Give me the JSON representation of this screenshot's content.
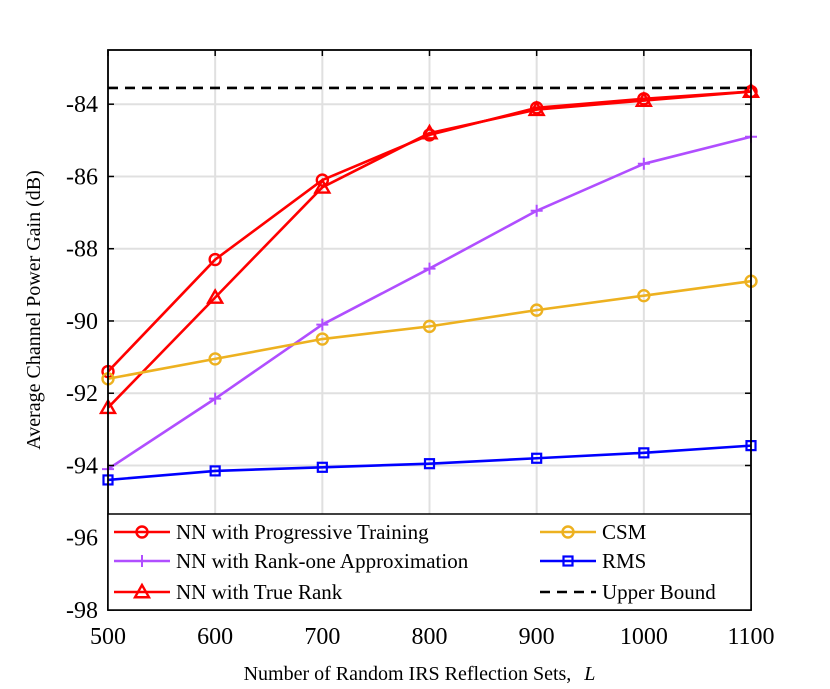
{
  "chart_data": {
    "type": "line",
    "title": "",
    "xlabel": "Number of Random IRS Reflection Sets,",
    "xlabel_var": "L",
    "ylabel": "Average Channel Power Gain (dB)",
    "xlim": [
      500,
      1100
    ],
    "ylim": [
      -98,
      -82.5
    ],
    "x_ticks": [
      500,
      600,
      700,
      800,
      900,
      1000,
      1100
    ],
    "x_tick_labels": [
      "500",
      "600",
      "700",
      "800",
      "900",
      "1000",
      "1100"
    ],
    "y_ticks": [
      -98,
      -96,
      -94,
      -92,
      -90,
      -88,
      -86,
      -84
    ],
    "y_tick_labels": [
      "-98",
      "-96",
      "-94",
      "-92",
      "-90",
      "-88",
      "-86",
      "-84"
    ],
    "grid": true,
    "legend_position": "bottom",
    "series": [
      {
        "key": "progressive",
        "name": "NN with Progressive Training",
        "color": "#ff0000",
        "marker": "circle",
        "dash": "solid",
        "x": [
          500,
          600,
          700,
          800,
          900,
          1000,
          1100
        ],
        "values": [
          -91.4,
          -88.3,
          -86.1,
          -84.85,
          -84.1,
          -83.85,
          -83.65
        ]
      },
      {
        "key": "rankone",
        "name": "NN with Rank-one Approximation",
        "color": "#b04eff",
        "marker": "plus",
        "dash": "solid",
        "x": [
          500,
          600,
          700,
          800,
          900,
          1000,
          1100
        ],
        "values": [
          -94.1,
          -92.15,
          -90.1,
          -88.55,
          -86.95,
          -85.65,
          -84.9
        ]
      },
      {
        "key": "truerank",
        "name": "NN with True Rank",
        "color": "#ff0000",
        "marker": "triangle",
        "dash": "solid",
        "x": [
          500,
          600,
          700,
          800,
          900,
          1000,
          1100
        ],
        "values": [
          -92.4,
          -89.35,
          -86.3,
          -84.8,
          -84.15,
          -83.9,
          -83.65
        ]
      },
      {
        "key": "csm",
        "name": "CSM",
        "color": "#edb120",
        "marker": "circle",
        "dash": "solid",
        "x": [
          500,
          600,
          700,
          800,
          900,
          1000,
          1100
        ],
        "values": [
          -91.6,
          -91.05,
          -90.5,
          -90.15,
          -89.7,
          -89.3,
          -88.9
        ]
      },
      {
        "key": "rms",
        "name": "RMS",
        "color": "#0000ff",
        "marker": "square",
        "dash": "solid",
        "x": [
          500,
          600,
          700,
          800,
          900,
          1000,
          1100
        ],
        "values": [
          -94.4,
          -94.15,
          -94.05,
          -93.95,
          -93.8,
          -93.65,
          -93.45
        ]
      },
      {
        "key": "upper",
        "name": "Upper Bound",
        "color": "#000000",
        "marker": "none",
        "dash": "dashed",
        "x": [
          500,
          1100
        ],
        "values": [
          -83.55,
          -83.55
        ]
      }
    ],
    "legend_columns": [
      [
        "progressive",
        "rankone",
        "truerank"
      ],
      [
        "csm",
        "rms",
        "upper"
      ]
    ]
  }
}
